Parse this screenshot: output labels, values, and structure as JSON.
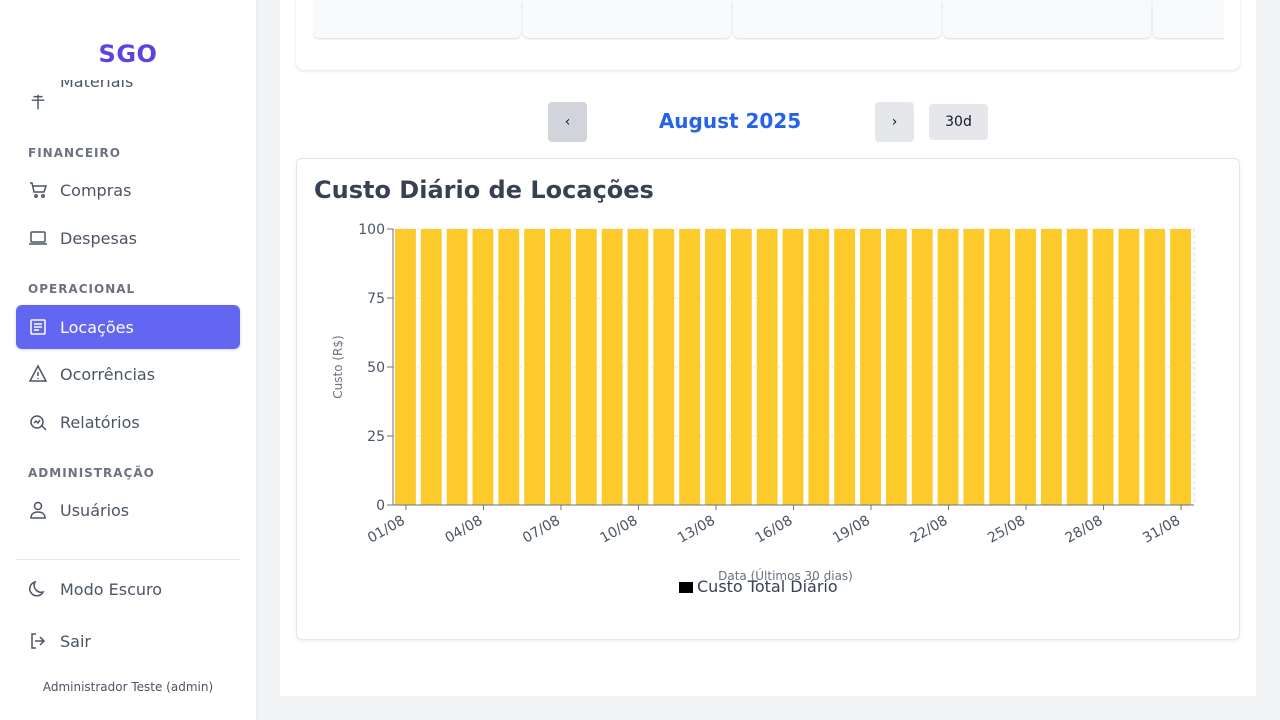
{
  "sidebar": {
    "brand": "SGO",
    "partial_item": "Materiais",
    "sections": {
      "financeiro": "FINANCEIRO",
      "operacional": "OPERACIONAL",
      "administracao": "ADMINISTRAÇÃO"
    },
    "items": {
      "compras": "Compras",
      "despesas": "Despesas",
      "locacoes": "Locações",
      "ocorrencias": "Ocorrências",
      "relatorios": "Relatórios",
      "usuarios": "Usuários"
    },
    "dark_mode": "Modo Escuro",
    "logout": "Sair",
    "user": "Administrador Teste (admin)"
  },
  "period": {
    "prev_label": "‹",
    "next_label": "›",
    "month": "August 2025",
    "range_label": "30d"
  },
  "chart": {
    "title": "Custo Diário de Locações"
  },
  "colors": {
    "brand": "#5b44e0",
    "active": "#6366f1",
    "bar": "#fcca2b",
    "month": "#2563eb"
  },
  "chart_data": {
    "type": "bar",
    "x": [
      "01/08",
      "02/08",
      "03/08",
      "04/08",
      "05/08",
      "06/08",
      "07/08",
      "08/08",
      "09/08",
      "10/08",
      "11/08",
      "12/08",
      "13/08",
      "14/08",
      "15/08",
      "16/08",
      "17/08",
      "18/08",
      "19/08",
      "20/08",
      "21/08",
      "22/08",
      "23/08",
      "24/08",
      "25/08",
      "26/08",
      "27/08",
      "28/08",
      "29/08",
      "30/08",
      "31/08"
    ],
    "tick_labels": [
      "01/08",
      "04/08",
      "07/08",
      "10/08",
      "13/08",
      "16/08",
      "19/08",
      "22/08",
      "25/08",
      "28/08",
      "31/08"
    ],
    "series": [
      {
        "name": "Custo Total Diário",
        "values": [
          100,
          100,
          100,
          100,
          100,
          100,
          100,
          100,
          100,
          100,
          100,
          100,
          100,
          100,
          100,
          100,
          100,
          100,
          100,
          100,
          100,
          100,
          100,
          100,
          100,
          100,
          100,
          100,
          100,
          100,
          100
        ]
      }
    ],
    "yticks": [
      0,
      25,
      50,
      75,
      100
    ],
    "ylim": [
      0,
      100
    ],
    "xlabel": "Data (Últimos 30 dias)",
    "ylabel": "Custo (R$)",
    "legend_position": "bottom",
    "grid": true
  }
}
